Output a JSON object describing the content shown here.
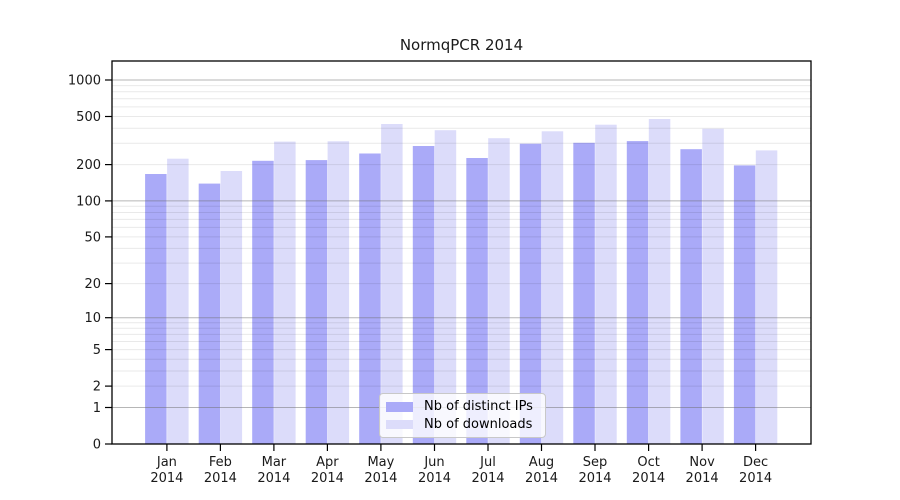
{
  "title": "NormqPCR 2014",
  "legend": {
    "items": [
      {
        "label": "Nb of distinct IPs",
        "color": "#aaaaf8"
      },
      {
        "label": "Nb of downloads",
        "color": "#dcdcfa"
      }
    ]
  },
  "chart_data": {
    "type": "bar",
    "title": "NormqPCR 2014",
    "categories": [
      "Jan 2014",
      "Feb 2014",
      "Mar 2014",
      "Apr 2014",
      "May 2014",
      "Jun 2014",
      "Jul 2014",
      "Aug 2014",
      "Sep 2014",
      "Oct 2014",
      "Nov 2014",
      "Dec 2014"
    ],
    "series": [
      {
        "name": "Nb of distinct IPs",
        "color": "#aaaaf8",
        "values": [
          167,
          139,
          215,
          218,
          247,
          285,
          227,
          298,
          303,
          313,
          268,
          197
        ]
      },
      {
        "name": "Nb of downloads",
        "color": "#dcdcfa",
        "values": [
          224,
          177,
          310,
          312,
          433,
          385,
          331,
          377,
          428,
          477,
          396,
          262
        ]
      }
    ],
    "xlabel": "",
    "ylabel": "",
    "yscale": "log1p",
    "ylim": [
      0,
      1435
    ],
    "y_ticks": [
      0,
      1,
      2,
      5,
      10,
      20,
      50,
      100,
      200,
      500,
      1000
    ],
    "grid": true,
    "grid_major_values": [
      1,
      10,
      100,
      1000
    ],
    "legend_position": "lower center",
    "colors": {
      "bar_dark": "#aaaaf8",
      "bar_light": "#dcdcfa",
      "grid_major": "#6e6e6e",
      "grid_minor": "#e6e6e6",
      "frame": "#000000"
    }
  }
}
